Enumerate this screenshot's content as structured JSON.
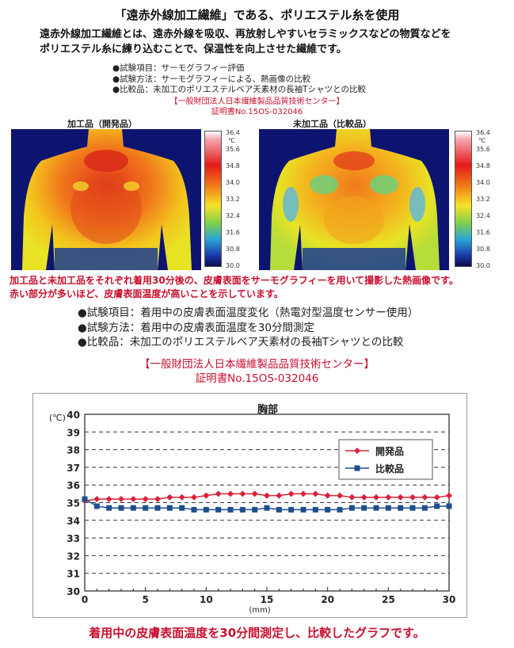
{
  "heading": "「遠赤外線加工繊維」である、ポリエステル糸を使用",
  "intro": [
    "遠赤外線加工繊維とは、遠赤外線を吸収、再放射しやすいセラミックスなどの物質などを",
    "ポリエステル糸に練り込むことで、保温性を向上させた繊維です。"
  ],
  "thermo_test": {
    "items": [
      "●試験項目：サーモグラフィー評価",
      "●試験方法：サーモグラフィーによる、熱画像の比較",
      "●比較品：未加工のポリエステルベア天素材の長袖Tシャツとの比較"
    ],
    "org": "【一般財団法人日本繊維製品品質技術センター】",
    "cert": "証明書No.15OS-032046"
  },
  "thermo_images": {
    "left_caption": "加工品（開発品）",
    "right_caption": "未加工品（比較品）",
    "unit": "℃",
    "scale": [
      "36.4",
      "35.6",
      "34.8",
      "34.0",
      "33.2",
      "32.4",
      "31.6",
      "30.8",
      "30.0"
    ]
  },
  "note": [
    "加工品と未加工品をそれぞれ着用30分後の、皮膚表面をサーモグラフィーを用いて撮影した熱画像です。",
    "赤い部分が多いほど、皮膚表面温度が高いことを示しています。"
  ],
  "temp_test": {
    "items": [
      "●試験項目：着用中の皮膚表面温度変化（熱電対型温度センサー使用）",
      "●試験方法：着用中の皮膚表面温度を30分間測定",
      "●比較品：未加工のポリエステルベア天素材の長袖Tシャツとの比較"
    ],
    "org": "【一般財団法人日本繊維製品品質技術センター】",
    "cert": "証明書No.15OS-032046"
  },
  "chart_data": {
    "type": "line",
    "title": "胸部",
    "ylabel": "(℃)",
    "xlabel": "(mm)",
    "xlim": [
      0,
      30
    ],
    "ylim": [
      30,
      40
    ],
    "xticks": [
      "0",
      "5",
      "10",
      "15",
      "20",
      "25",
      "30"
    ],
    "yticks": [
      "30",
      "31",
      "32",
      "33",
      "34",
      "35",
      "36",
      "37",
      "38",
      "39",
      "40"
    ],
    "grid": true,
    "legend": "inside-right",
    "x": [
      0,
      1,
      2,
      3,
      4,
      5,
      6,
      7,
      8,
      9,
      10,
      11,
      12,
      13,
      14,
      15,
      16,
      17,
      18,
      19,
      20,
      21,
      22,
      23,
      24,
      25,
      26,
      27,
      28,
      29,
      30
    ],
    "series": [
      {
        "name": "開発品",
        "color": "#d9213a",
        "marker": "diamond",
        "values": [
          35.1,
          35.2,
          35.2,
          35.2,
          35.2,
          35.2,
          35.2,
          35.3,
          35.3,
          35.3,
          35.4,
          35.5,
          35.5,
          35.5,
          35.5,
          35.4,
          35.4,
          35.5,
          35.5,
          35.5,
          35.4,
          35.4,
          35.3,
          35.3,
          35.3,
          35.3,
          35.3,
          35.3,
          35.3,
          35.3,
          35.4
        ]
      },
      {
        "name": "比較品",
        "color": "#1f4e8c",
        "marker": "square",
        "values": [
          35.2,
          34.8,
          34.7,
          34.7,
          34.7,
          34.7,
          34.7,
          34.7,
          34.7,
          34.6,
          34.6,
          34.6,
          34.6,
          34.6,
          34.6,
          34.7,
          34.6,
          34.6,
          34.6,
          34.6,
          34.6,
          34.6,
          34.7,
          34.7,
          34.7,
          34.7,
          34.7,
          34.7,
          34.7,
          34.8,
          34.8
        ]
      }
    ]
  },
  "bottom_caption": "着用中の皮膚表面温度を30分間測定し、比較したグラフです。"
}
